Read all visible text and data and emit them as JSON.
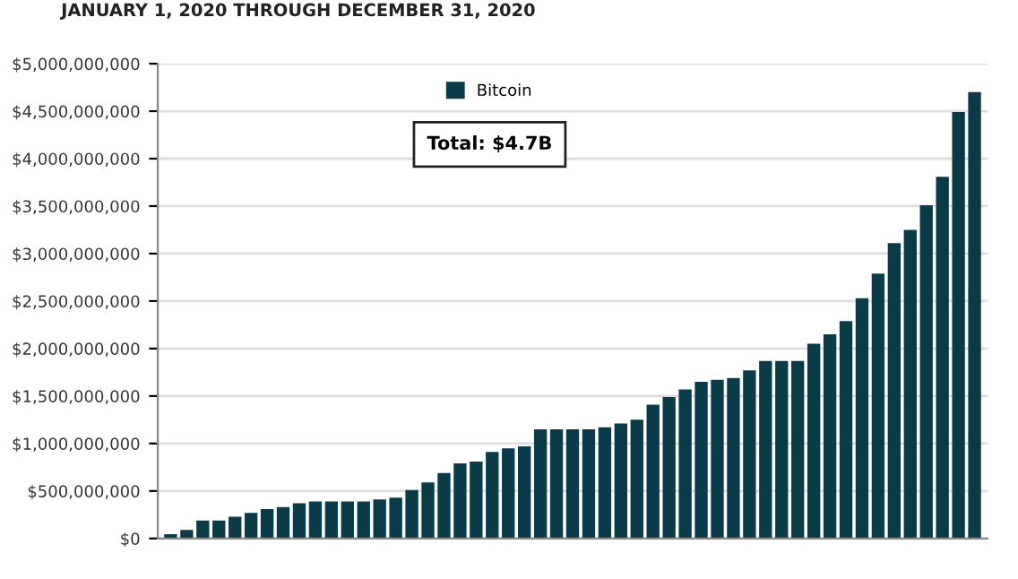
{
  "chart_data": {
    "type": "bar",
    "subtitle": "JANUARY 1, 2020 THROUGH DECEMBER 31, 2020",
    "categories": [
      null,
      null,
      null,
      null,
      null,
      null,
      null,
      null,
      null,
      null,
      null,
      null,
      null,
      null,
      null,
      null,
      null,
      null,
      null,
      null,
      null,
      null,
      null,
      null,
      null,
      null,
      null,
      null,
      null,
      null,
      null,
      null,
      null,
      null,
      null,
      null,
      null,
      null,
      null,
      null,
      null,
      null,
      null,
      null,
      null,
      null,
      null,
      null,
      null,
      null,
      null
    ],
    "series": [
      {
        "name": "Bitcoin",
        "color": "#0b3a48",
        "values": [
          45000000,
          90000000,
          190000000,
          190000000,
          230000000,
          270000000,
          310000000,
          330000000,
          370000000,
          390000000,
          390000000,
          390000000,
          390000000,
          410000000,
          430000000,
          510000000,
          590000000,
          690000000,
          790000000,
          810000000,
          910000000,
          950000000,
          970000000,
          1150000000,
          1150000000,
          1150000000,
          1150000000,
          1170000000,
          1210000000,
          1250000000,
          1410000000,
          1490000000,
          1570000000,
          1650000000,
          1670000000,
          1690000000,
          1770000000,
          1870000000,
          1870000000,
          1870000000,
          2050000000,
          2150000000,
          2290000000,
          2530000000,
          2790000000,
          3110000000,
          3250000000,
          3510000000,
          3810000000,
          4490000000,
          4700000000
        ]
      }
    ],
    "ylim": [
      0,
      5000000000
    ],
    "yticks": [
      {
        "value": 0,
        "label": "$0"
      },
      {
        "value": 500000000,
        "label": "$500,000,000"
      },
      {
        "value": 1000000000,
        "label": "$1,000,000,000"
      },
      {
        "value": 1500000000,
        "label": "$1,500,000,000"
      },
      {
        "value": 2000000000,
        "label": "$2,000,000,000"
      },
      {
        "value": 2500000000,
        "label": "$2,500,000,000"
      },
      {
        "value": 3000000000,
        "label": "$3,000,000,000"
      },
      {
        "value": 3500000000,
        "label": "$3,500,000,000"
      },
      {
        "value": 4000000000,
        "label": "$4,000,000,000"
      },
      {
        "value": 4500000000,
        "label": "$4,500,000,000"
      },
      {
        "value": 5000000000,
        "label": "$5,000,000,000"
      }
    ],
    "annotations": [
      "Total: $4.7B"
    ],
    "grid": "y",
    "legend": "top"
  }
}
